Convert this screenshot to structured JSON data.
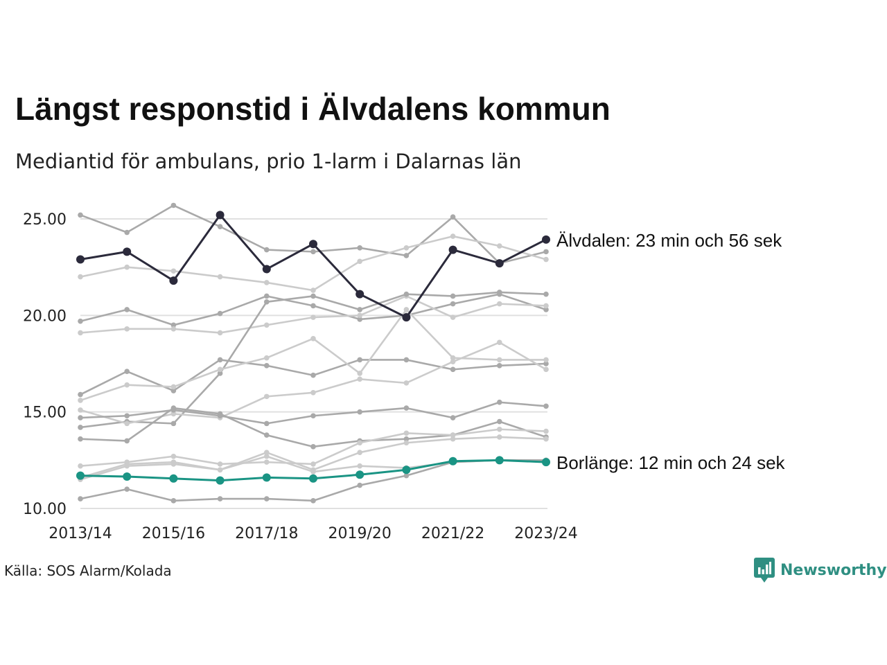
{
  "title": "Längst responstid i Älvdalens kommun",
  "subtitle": "Mediantid för ambulans, prio 1-larm i Dalarnas län",
  "source": "Källa: SOS Alarm/Kolada",
  "brand": {
    "name": "Newsworthy",
    "icon": "newsworthy-logo-icon",
    "color": "#2f8f82"
  },
  "colors": {
    "highlight_dark": "#2b2a3b",
    "highlight_teal": "#1a9484",
    "context_dark": "#a9a9a9",
    "context_light": "#cbcbcb",
    "grid": "#e0e0e0"
  },
  "chart_data": {
    "type": "line",
    "x": [
      "2013/14",
      "2014/15",
      "2015/16",
      "2016/17",
      "2017/18",
      "2018/19",
      "2019/20",
      "2020/21",
      "2021/22",
      "2022/23",
      "2023/24"
    ],
    "x_tick_labels": [
      "2013/14",
      "2015/16",
      "2017/18",
      "2019/20",
      "2021/22",
      "2023/24"
    ],
    "y_tick_labels": [
      "10.00",
      "15.00",
      "20.00",
      "25.00"
    ],
    "ylim": [
      10,
      26
    ],
    "grid": "horizontal",
    "highlighted": [
      {
        "name": "Älvdalen",
        "label": "Älvdalen: 23 min och 56 sek",
        "color": "#2b2a3b",
        "values": [
          22.9,
          23.3,
          21.8,
          25.2,
          22.4,
          23.7,
          21.1,
          19.9,
          23.4,
          22.7,
          23.93
        ]
      },
      {
        "name": "Borlänge",
        "label": "Borlänge: 12 min och 24 sek",
        "color": "#1a9484",
        "values": [
          11.7,
          11.65,
          11.55,
          11.45,
          11.6,
          11.55,
          11.75,
          12.0,
          12.45,
          12.5,
          12.4
        ]
      }
    ],
    "context_series": [
      {
        "shade": "dark",
        "values": [
          25.2,
          24.3,
          25.7,
          24.6,
          23.4,
          23.3,
          23.5,
          23.1,
          25.1,
          22.7,
          23.3
        ]
      },
      {
        "shade": "light",
        "values": [
          22.0,
          22.5,
          22.3,
          22.0,
          21.7,
          21.3,
          22.8,
          23.5,
          24.1,
          23.6,
          22.9
        ]
      },
      {
        "shade": "dark",
        "values": [
          19.7,
          20.3,
          19.5,
          20.1,
          21.0,
          20.5,
          19.8,
          20.0,
          20.6,
          21.1,
          20.3
        ]
      },
      {
        "shade": "dark",
        "values": [
          15.9,
          17.1,
          16.1,
          17.7,
          17.4,
          16.9,
          17.7,
          17.7,
          17.2,
          17.4,
          17.5
        ]
      },
      {
        "shade": "light",
        "values": [
          19.1,
          19.3,
          19.3,
          19.1,
          19.5,
          19.9,
          20.0,
          21.0,
          19.9,
          20.6,
          20.5
        ]
      },
      {
        "shade": "dark",
        "values": [
          14.2,
          14.5,
          14.4,
          17.0,
          20.7,
          21.0,
          20.3,
          21.1,
          21.0,
          21.2,
          21.1
        ]
      },
      {
        "shade": "light",
        "values": [
          15.6,
          16.4,
          16.3,
          17.2,
          17.8,
          18.8,
          17.0,
          20.3,
          17.8,
          17.7,
          17.7
        ]
      },
      {
        "shade": "light",
        "values": [
          15.1,
          14.4,
          14.9,
          14.7,
          15.8,
          16.0,
          16.7,
          16.5,
          17.6,
          18.6,
          17.2
        ]
      },
      {
        "shade": "dark",
        "values": [
          14.7,
          14.8,
          15.1,
          14.8,
          14.4,
          14.8,
          15.0,
          15.2,
          14.7,
          15.5,
          15.3
        ]
      },
      {
        "shade": "dark",
        "values": [
          13.6,
          13.5,
          15.2,
          14.9,
          13.8,
          13.2,
          13.5,
          13.6,
          13.8,
          14.5,
          13.7
        ]
      },
      {
        "shade": "light",
        "values": [
          12.2,
          12.4,
          12.7,
          12.3,
          12.4,
          12.3,
          13.4,
          13.9,
          13.8,
          14.1,
          14.0
        ]
      },
      {
        "shade": "light",
        "values": [
          11.6,
          12.3,
          12.4,
          12.0,
          12.9,
          12.0,
          12.9,
          13.4,
          13.6,
          13.7,
          13.6
        ]
      },
      {
        "shade": "light",
        "values": [
          11.5,
          12.2,
          12.3,
          12.0,
          12.7,
          11.9,
          12.2,
          12.1,
          12.4,
          12.5,
          12.5
        ]
      },
      {
        "shade": "dark",
        "values": [
          10.5,
          11.0,
          10.4,
          10.5,
          10.5,
          10.4,
          11.2,
          11.7,
          12.4,
          12.5,
          12.5
        ]
      }
    ]
  }
}
